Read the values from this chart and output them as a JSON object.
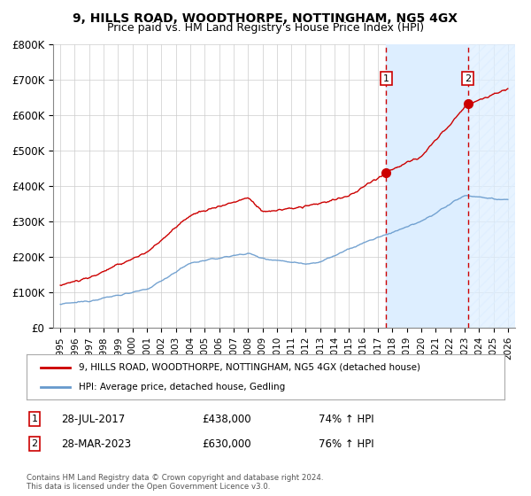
{
  "title": "9, HILLS ROAD, WOODTHORPE, NOTTINGHAM, NG5 4GX",
  "subtitle": "Price paid vs. HM Land Registry's House Price Index (HPI)",
  "ylim": [
    0,
    800000
  ],
  "yticks": [
    0,
    100000,
    200000,
    300000,
    400000,
    500000,
    600000,
    700000,
    800000
  ],
  "ytick_labels": [
    "£0",
    "£100K",
    "£200K",
    "£300K",
    "£400K",
    "£500K",
    "£600K",
    "£700K",
    "£800K"
  ],
  "sale1_date": 2017.57,
  "sale1_price": 438000,
  "sale1_label": "28-JUL-2017",
  "sale1_pct": "74% ↑ HPI",
  "sale2_date": 2023.24,
  "sale2_price": 630000,
  "sale2_label": "28-MAR-2023",
  "sale2_pct": "76% ↑ HPI",
  "red_line_color": "#cc0000",
  "blue_line_color": "#6699cc",
  "shaded_region_color": "#ddeeff",
  "dashed_line_color": "#cc0000",
  "grid_color": "#cccccc",
  "background_color": "#ffffff",
  "legend_label_red": "9, HILLS ROAD, WOODTHORPE, NOTTINGHAM, NG5 4GX (detached house)",
  "legend_label_blue": "HPI: Average price, detached house, Gedling",
  "footer": "Contains HM Land Registry data © Crown copyright and database right 2024.\nThis data is licensed under the Open Government Licence v3.0.",
  "title_fontsize": 10,
  "subtitle_fontsize": 9
}
